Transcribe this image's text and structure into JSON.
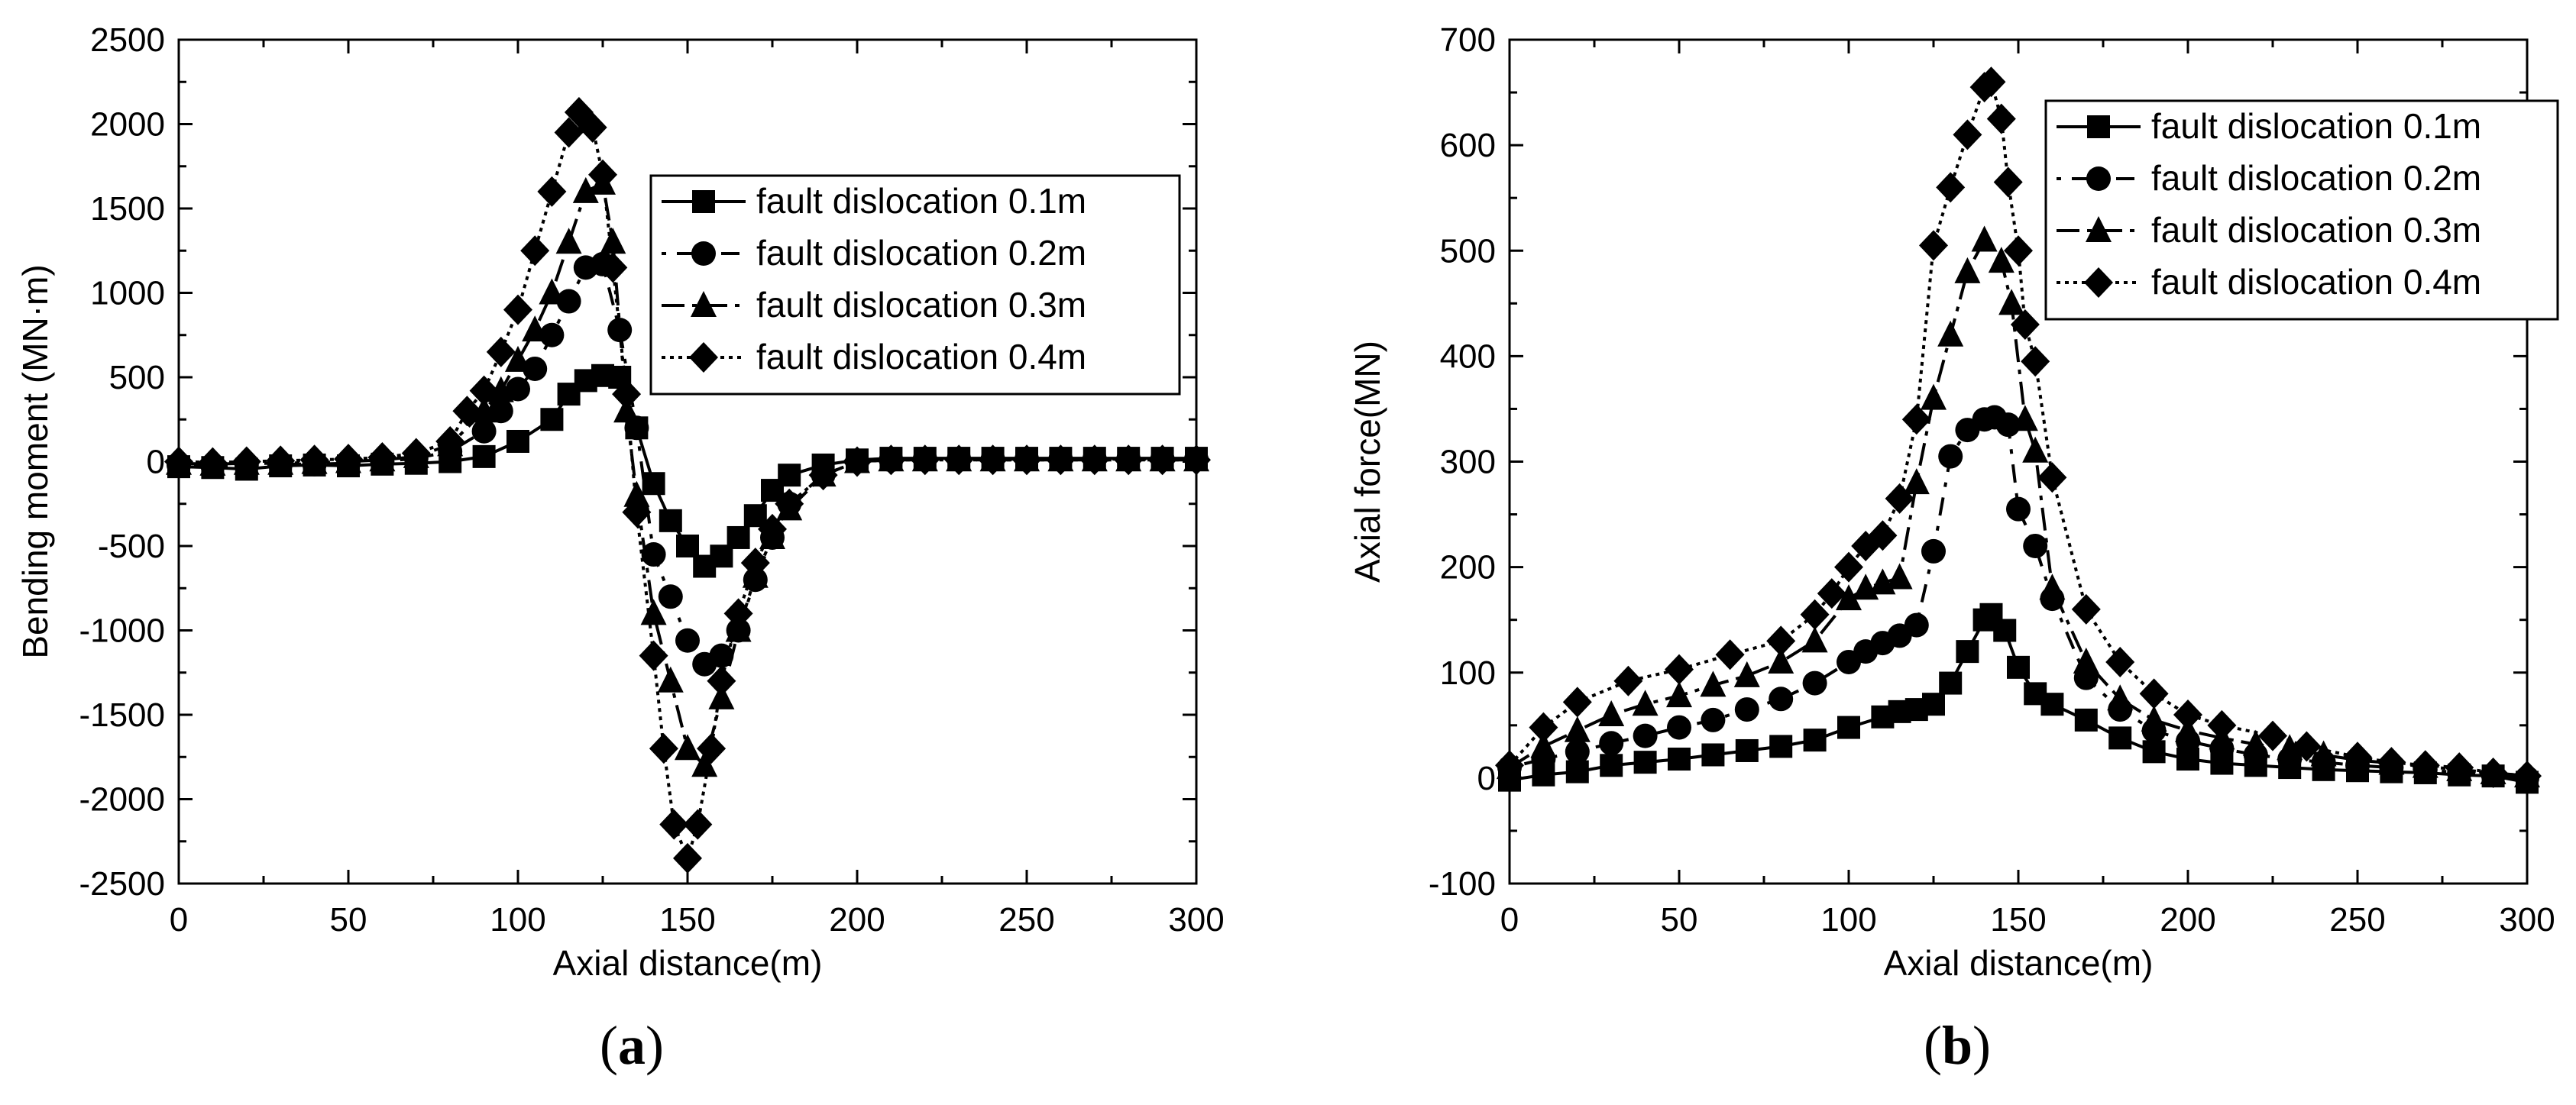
{
  "chart_data": [
    {
      "type": "line",
      "panel_label": "a",
      "xlabel": "Axial distance(m)",
      "ylabel": "Bending moment (MN·m)",
      "xlim": [
        0,
        300
      ],
      "ylim": [
        -2500,
        2500
      ],
      "xticks": [
        0,
        50,
        100,
        150,
        200,
        250,
        300
      ],
      "yticks": [
        -2500,
        -2000,
        -1500,
        -1000,
        -500,
        0,
        500,
        1000,
        1500,
        2000,
        2500
      ],
      "grid": false,
      "legend_position": "top-right",
      "series": [
        {
          "name": "fault dislocation 0.1m",
          "marker": "square",
          "dash": "solid",
          "x": [
            0,
            10,
            20,
            30,
            40,
            50,
            60,
            70,
            80,
            90,
            100,
            110,
            115,
            120,
            125,
            130,
            135,
            140,
            145,
            150,
            155,
            160,
            165,
            170,
            175,
            180,
            190,
            200,
            210,
            220,
            230,
            240,
            250,
            260,
            270,
            280,
            290,
            300
          ],
          "y": [
            -30,
            -35,
            -45,
            -25,
            -20,
            -25,
            -15,
            -10,
            0,
            30,
            120,
            250,
            400,
            480,
            510,
            500,
            200,
            -130,
            -350,
            -500,
            -620,
            -560,
            -450,
            -320,
            -170,
            -80,
            -20,
            10,
            20,
            20,
            20,
            20,
            20,
            20,
            20,
            20,
            20,
            20
          ]
        },
        {
          "name": "fault dislocation 0.2m",
          "marker": "circle",
          "dash": "dot",
          "x": [
            0,
            10,
            20,
            30,
            40,
            50,
            60,
            70,
            80,
            90,
            95,
            100,
            105,
            110,
            115,
            120,
            125,
            130,
            135,
            140,
            145,
            150,
            155,
            160,
            165,
            170,
            175,
            180,
            190,
            200,
            210,
            220,
            230,
            240,
            250,
            260,
            270,
            280,
            290,
            300
          ],
          "y": [
            -20,
            -25,
            -20,
            -15,
            -15,
            -10,
            0,
            20,
            60,
            180,
            300,
            430,
            550,
            750,
            950,
            1150,
            1170,
            780,
            200,
            -550,
            -800,
            -1060,
            -1200,
            -1150,
            -1000,
            -700,
            -450,
            -250,
            -80,
            0,
            10,
            15,
            15,
            15,
            15,
            15,
            15,
            15,
            15,
            15
          ]
        },
        {
          "name": "fault dislocation 0.3m",
          "marker": "triangle",
          "dash": "dashdot",
          "x": [
            0,
            10,
            20,
            30,
            40,
            50,
            60,
            70,
            80,
            90,
            95,
            100,
            105,
            110,
            115,
            120,
            125,
            128,
            132,
            135,
            140,
            145,
            150,
            155,
            160,
            165,
            170,
            175,
            180,
            190,
            200,
            210,
            220,
            230,
            240,
            250,
            260,
            270,
            280,
            290,
            300
          ],
          "y": [
            -10,
            -15,
            -10,
            -10,
            -5,
            0,
            10,
            30,
            100,
            300,
            420,
            600,
            780,
            1000,
            1300,
            1600,
            1650,
            1300,
            300,
            -200,
            -900,
            -1300,
            -1700,
            -1800,
            -1400,
            -1000,
            -680,
            -450,
            -280,
            -80,
            0,
            10,
            10,
            10,
            10,
            10,
            10,
            10,
            10,
            10,
            10
          ]
        },
        {
          "name": "fault dislocation 0.4m",
          "marker": "diamond",
          "dash": "dotted",
          "x": [
            0,
            10,
            20,
            30,
            40,
            50,
            60,
            70,
            80,
            85,
            90,
            95,
            100,
            105,
            110,
            115,
            118,
            122,
            125,
            128,
            132,
            135,
            140,
            143,
            146,
            150,
            153,
            157,
            160,
            165,
            170,
            175,
            180,
            190,
            200,
            210,
            220,
            230,
            240,
            250,
            260,
            270,
            280,
            290,
            300
          ],
          "y": [
            0,
            -5,
            0,
            5,
            10,
            15,
            25,
            50,
            120,
            300,
            420,
            650,
            900,
            1250,
            1600,
            1950,
            2070,
            1980,
            1700,
            1150,
            400,
            -300,
            -1150,
            -1700,
            -2150,
            -2350,
            -2150,
            -1700,
            -1300,
            -900,
            -600,
            -400,
            -250,
            -80,
            0,
            10,
            10,
            10,
            10,
            10,
            10,
            10,
            10,
            10,
            10
          ]
        }
      ]
    },
    {
      "type": "line",
      "panel_label": "b",
      "xlabel": "Axial distance(m)",
      "ylabel": "Axial force(MN)",
      "xlim": [
        0,
        300
      ],
      "ylim": [
        -100,
        700
      ],
      "xticks": [
        0,
        50,
        100,
        150,
        200,
        250,
        300
      ],
      "yticks": [
        -100,
        0,
        100,
        200,
        300,
        400,
        500,
        600,
        700
      ],
      "grid": false,
      "legend_position": "top-right",
      "series": [
        {
          "name": "fault dislocation 0.1m",
          "marker": "square",
          "dash": "solid",
          "x": [
            0,
            10,
            20,
            30,
            40,
            50,
            60,
            70,
            80,
            90,
            100,
            110,
            115,
            120,
            125,
            130,
            135,
            140,
            142,
            146,
            150,
            155,
            160,
            170,
            180,
            190,
            200,
            210,
            220,
            230,
            240,
            250,
            260,
            270,
            280,
            290,
            300
          ],
          "y": [
            -2,
            3,
            6,
            12,
            15,
            18,
            22,
            26,
            30,
            36,
            48,
            58,
            63,
            65,
            70,
            90,
            120,
            150,
            155,
            140,
            105,
            80,
            70,
            55,
            38,
            25,
            18,
            14,
            12,
            10,
            8,
            7,
            6,
            5,
            3,
            2,
            -4
          ]
        },
        {
          "name": "fault dislocation 0.2m",
          "marker": "circle",
          "dash": "dot",
          "x": [
            0,
            10,
            20,
            30,
            40,
            50,
            60,
            70,
            80,
            90,
            100,
            105,
            110,
            115,
            120,
            125,
            130,
            135,
            140,
            143,
            147,
            150,
            155,
            160,
            170,
            180,
            190,
            200,
            210,
            220,
            230,
            240,
            250,
            260,
            270,
            280,
            290,
            300
          ],
          "y": [
            10,
            18,
            25,
            33,
            40,
            48,
            55,
            65,
            75,
            90,
            110,
            120,
            128,
            135,
            145,
            215,
            305,
            330,
            340,
            342,
            335,
            255,
            220,
            170,
            95,
            65,
            45,
            35,
            28,
            22,
            18,
            15,
            12,
            10,
            8,
            5,
            3,
            0
          ]
        },
        {
          "name": "fault dislocation 0.3m",
          "marker": "triangle",
          "dash": "dashdot",
          "x": [
            0,
            10,
            20,
            30,
            40,
            50,
            60,
            70,
            80,
            90,
            100,
            105,
            110,
            115,
            120,
            125,
            130,
            135,
            140,
            145,
            148,
            152,
            155,
            160,
            170,
            180,
            190,
            200,
            210,
            220,
            230,
            240,
            250,
            260,
            270,
            280,
            290,
            300
          ],
          "y": [
            10,
            30,
            45,
            60,
            70,
            78,
            88,
            97,
            110,
            130,
            170,
            180,
            185,
            190,
            280,
            360,
            420,
            480,
            510,
            490,
            450,
            340,
            310,
            180,
            110,
            75,
            55,
            45,
            38,
            32,
            28,
            22,
            17,
            14,
            11,
            8,
            5,
            2
          ]
        },
        {
          "name": "fault dislocation 0.4m",
          "marker": "diamond",
          "dash": "dotted",
          "x": [
            0,
            10,
            20,
            35,
            50,
            65,
            80,
            90,
            95,
            100,
            105,
            110,
            115,
            120,
            125,
            130,
            135,
            140,
            142,
            145,
            147,
            150,
            152,
            155,
            160,
            170,
            180,
            190,
            200,
            210,
            225,
            235,
            250,
            260,
            270,
            280,
            290,
            300
          ],
          "y": [
            12,
            48,
            72,
            92,
            103,
            117,
            130,
            155,
            175,
            200,
            220,
            230,
            265,
            340,
            505,
            560,
            610,
            655,
            660,
            625,
            565,
            500,
            430,
            395,
            285,
            160,
            110,
            80,
            60,
            50,
            40,
            30,
            20,
            15,
            12,
            10,
            5,
            2
          ]
        }
      ]
    }
  ]
}
